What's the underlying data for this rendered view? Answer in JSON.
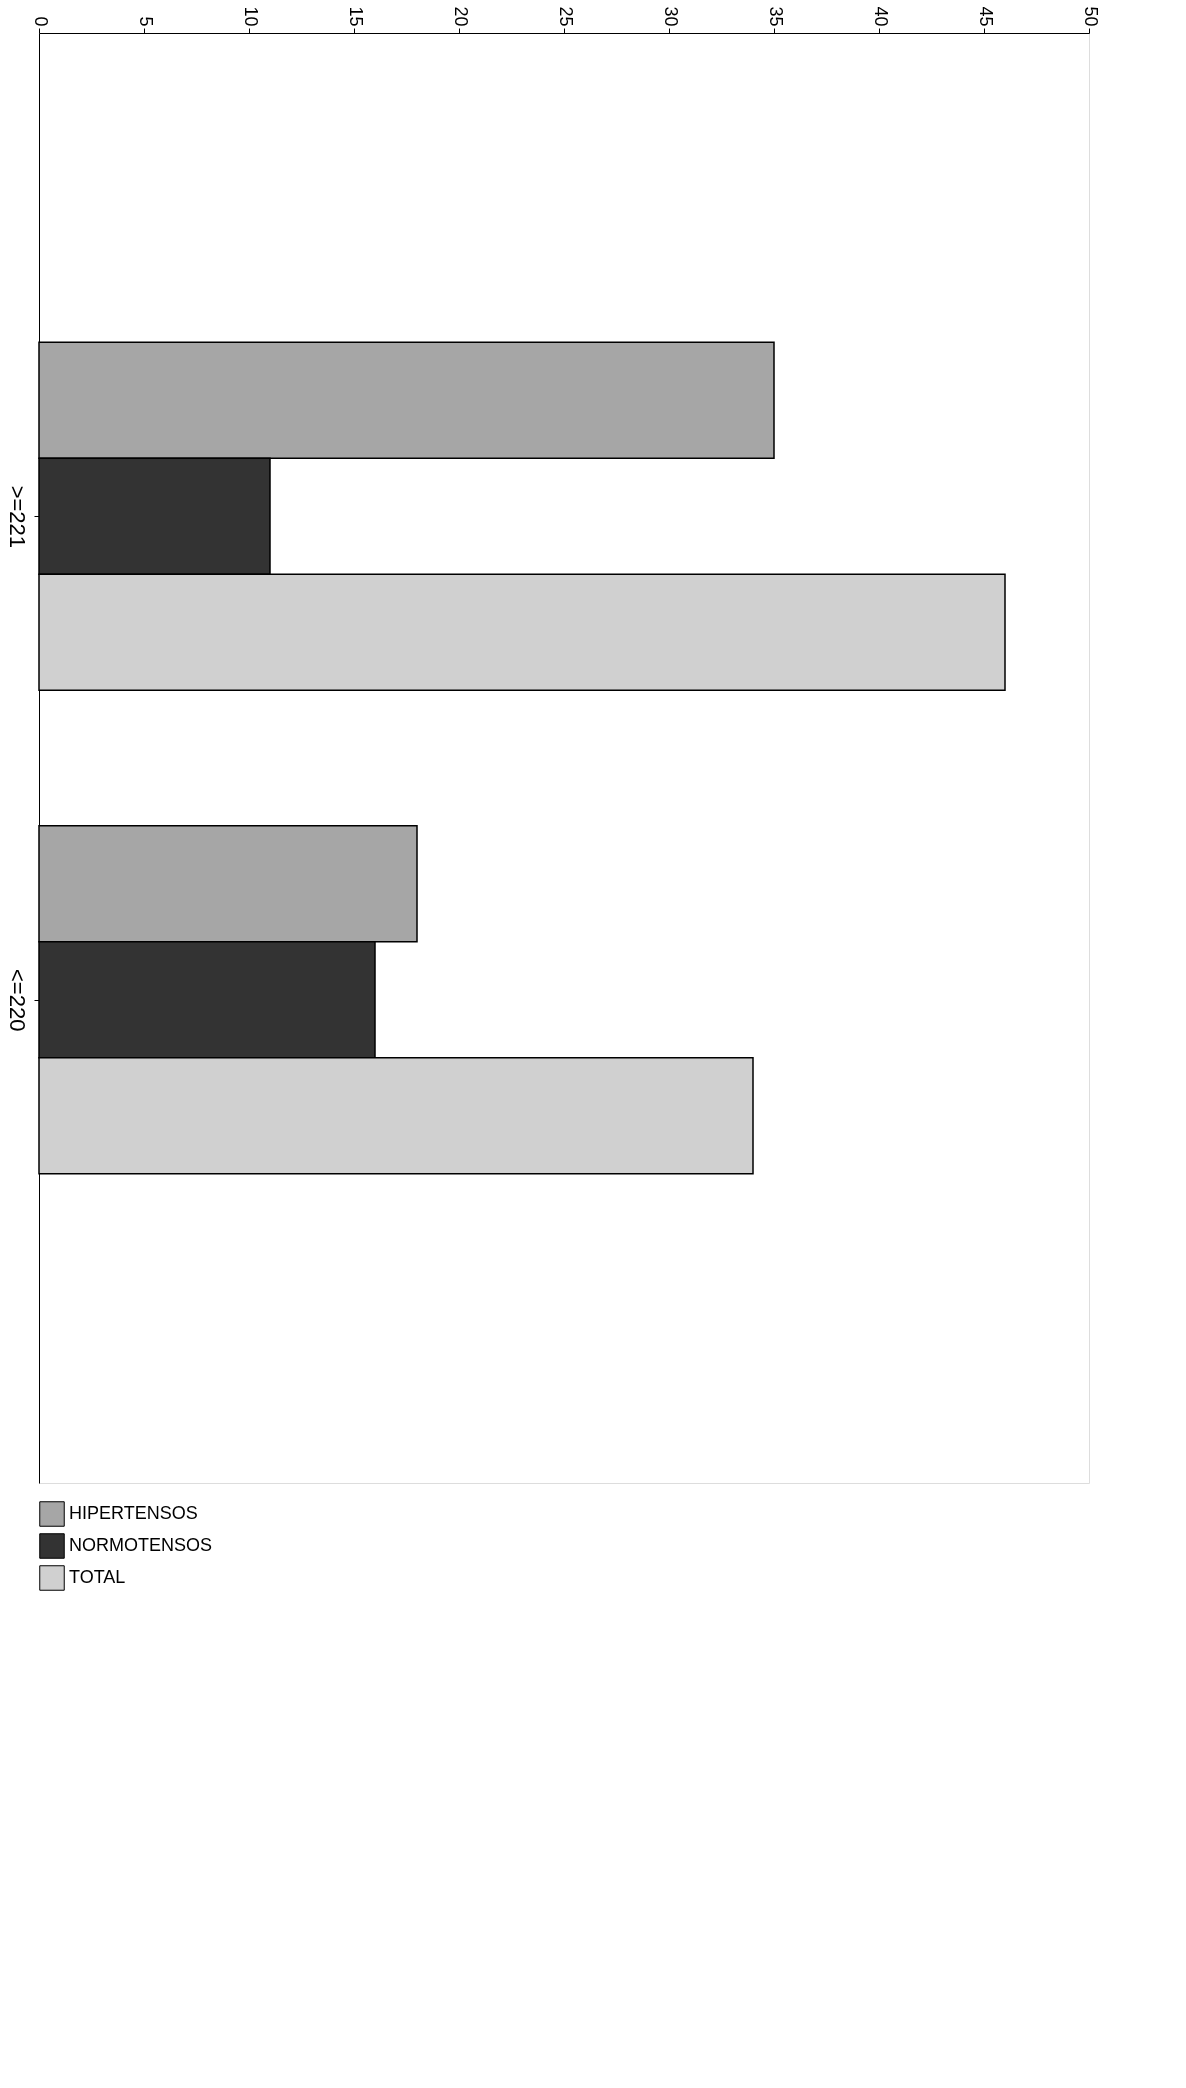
{
  "chart_data": {
    "type": "bar",
    "orientation": "horizontal",
    "categories": [
      ">=221",
      "<=220"
    ],
    "series": [
      {
        "name": "HIPERTENSOS",
        "color": "#a6a6a6",
        "values": [
          35,
          18
        ]
      },
      {
        "name": "NORMOTENSOS",
        "color": "#333333",
        "values": [
          11,
          16
        ]
      },
      {
        "name": "TOTAL",
        "color": "#d0d0d0",
        "values": [
          46,
          34
        ]
      }
    ],
    "xlim": [
      0,
      50
    ],
    "xticks": [
      0,
      5,
      10,
      15,
      20,
      25,
      30,
      35,
      40,
      45,
      50
    ],
    "grid": false,
    "legend": "bottom"
  }
}
